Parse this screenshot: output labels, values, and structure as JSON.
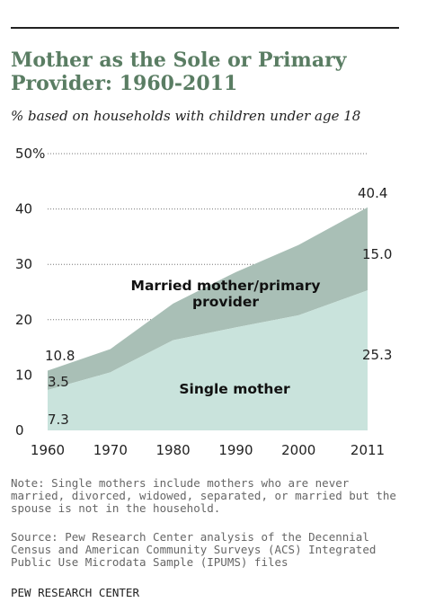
{
  "title": "Mother as the Sole or Primary Provider: 1960-2011",
  "subtitle": "% based on households with children under age 18",
  "colors": {
    "married_area": "#a9bfb6",
    "single_area": "#c9e3dc",
    "title": "#5a7d63",
    "grid": "#777777"
  },
  "chart_data": {
    "type": "area",
    "stacked": true,
    "title": "Mother as the Sole or Primary Provider: 1960-2011",
    "subtitle": "% based on households with children under age 18",
    "xlabel": "",
    "ylabel": "",
    "ylim": [
      0,
      50
    ],
    "yticks": [
      0,
      10,
      20,
      30,
      40,
      50
    ],
    "ytick_labels": [
      "0",
      "10",
      "20",
      "30",
      "40",
      "50%"
    ],
    "x": [
      1960,
      1970,
      1980,
      1990,
      2000,
      2011
    ],
    "xtick_labels": [
      "1960",
      "1970",
      "1980",
      "1990",
      "2000",
      "2011"
    ],
    "grid": "horizontal dotted",
    "series": [
      {
        "name": "Single mother",
        "values": [
          7.3,
          10.5,
          16.3,
          18.6,
          20.8,
          25.3
        ]
      },
      {
        "name": "Married mother/primary provider",
        "values": [
          3.5,
          4.2,
          6.6,
          10.0,
          12.7,
          15.0
        ]
      }
    ],
    "data_labels": {
      "start_total": "10.8",
      "start_married": "3.5",
      "start_single": "7.3",
      "end_total": "40.4",
      "end_married": "15.0",
      "end_single": "25.3"
    },
    "series_labels": {
      "married": "Married mother/primary provider",
      "married_line1": "Married mother/primary",
      "married_line2": "provider",
      "single": "Single mother"
    }
  },
  "note": "Note: Single mothers include mothers who are never married, divorced, widowed, separated, or married but the spouse is not in the household.",
  "source": "Source: Pew Research Center analysis of the Decennial Census and American Community Surveys (ACS) Integrated Public Use Microdata Sample (IPUMS) files",
  "credit": "PEW RESEARCH CENTER"
}
